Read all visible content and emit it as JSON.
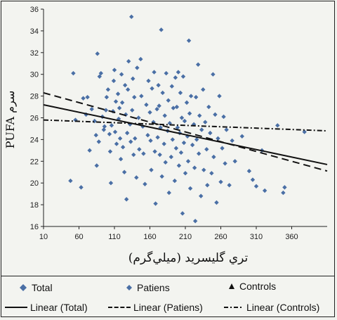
{
  "chart_data": {
    "type": "scatter",
    "title": "",
    "xlabel": "تري گليسريد (ميلي‌گرم)",
    "ylabel": "PUFA سرم",
    "xlim": [
      10,
      410
    ],
    "ylim": [
      16,
      36
    ],
    "x_ticks": [
      10,
      60,
      110,
      160,
      210,
      260,
      310,
      360
    ],
    "y_ticks": [
      16,
      18,
      20,
      22,
      24,
      26,
      28,
      30,
      32,
      34,
      36
    ],
    "grid": false,
    "legend_position": "bottom",
    "series": [
      {
        "name": "Total",
        "marker": "diamond",
        "color": "#4a6fa5",
        "points": [
          [
            48,
            20.2
          ],
          [
            52,
            30.1
          ],
          [
            55,
            25.8
          ],
          [
            63,
            19.6
          ],
          [
            66,
            27.8
          ],
          [
            70,
            26.3
          ],
          [
            72,
            27.9
          ],
          [
            75,
            23.0
          ],
          [
            78,
            26.8
          ],
          [
            82,
            25.7
          ],
          [
            84,
            24.4
          ],
          [
            85,
            21.6
          ],
          [
            86,
            31.9
          ],
          [
            88,
            23.8
          ],
          [
            89,
            29.8
          ],
          [
            91,
            30.1
          ],
          [
            93,
            26.1
          ],
          [
            95,
            24.9
          ],
          [
            96,
            25.2
          ],
          [
            98,
            26.7
          ],
          [
            99,
            27.9
          ],
          [
            101,
            28.6
          ],
          [
            103,
            24.5
          ],
          [
            104,
            22.9
          ],
          [
            105,
            20.0
          ],
          [
            106,
            25.3
          ],
          [
            108,
            26.6
          ],
          [
            109,
            29.4
          ],
          [
            110,
            30.4
          ],
          [
            111,
            24.7
          ],
          [
            112,
            27.5
          ],
          [
            113,
            23.6
          ],
          [
            115,
            28.2
          ],
          [
            116,
            25.9
          ],
          [
            117,
            26.9
          ],
          [
            118,
            24.1
          ],
          [
            119,
            22.2
          ],
          [
            120,
            30.0
          ],
          [
            121,
            27.4
          ],
          [
            122,
            23.3
          ],
          [
            124,
            21.0
          ],
          [
            125,
            29.0
          ],
          [
            126,
            26.3
          ],
          [
            127,
            18.5
          ],
          [
            128,
            24.6
          ],
          [
            129,
            28.6
          ],
          [
            130,
            31.2
          ],
          [
            132,
            25.4
          ],
          [
            133,
            23.8
          ],
          [
            134,
            35.3
          ],
          [
            135,
            26.7
          ],
          [
            136,
            29.6
          ],
          [
            137,
            22.6
          ],
          [
            138,
            27.9
          ],
          [
            139,
            24.1
          ],
          [
            141,
            20.5
          ],
          [
            142,
            30.6
          ],
          [
            144,
            26.0
          ],
          [
            145,
            23.1
          ],
          [
            147,
            31.4
          ],
          [
            148,
            28.0
          ],
          [
            150,
            25.2
          ],
          [
            151,
            22.7
          ],
          [
            153,
            19.9
          ],
          [
            155,
            27.2
          ],
          [
            157,
            24.4
          ],
          [
            158,
            29.4
          ],
          [
            160,
            26.5
          ],
          [
            161,
            23.9
          ],
          [
            162,
            21.2
          ],
          [
            163,
            28.7
          ],
          [
            165,
            25.6
          ],
          [
            166,
            30.2
          ],
          [
            167,
            22.9
          ],
          [
            168,
            18.1
          ],
          [
            170,
            26.8
          ],
          [
            171,
            24.2
          ],
          [
            172,
            29.0
          ],
          [
            173,
            27.1
          ],
          [
            174,
            22.6
          ],
          [
            175,
            25.1
          ],
          [
            176,
            34.1
          ],
          [
            177,
            20.6
          ],
          [
            178,
            28.3
          ],
          [
            180,
            23.6
          ],
          [
            181,
            26.2
          ],
          [
            182,
            21.9
          ],
          [
            183,
            30.1
          ],
          [
            185,
            24.8
          ],
          [
            186,
            27.6
          ],
          [
            187,
            19.1
          ],
          [
            188,
            25.5
          ],
          [
            190,
            22.4
          ],
          [
            191,
            28.9
          ],
          [
            192,
            24.0
          ],
          [
            193,
            26.9
          ],
          [
            195,
            20.2
          ],
          [
            196,
            29.7
          ],
          [
            197,
            23.2
          ],
          [
            198,
            27.0
          ],
          [
            199,
            25.1
          ],
          [
            200,
            30.2
          ],
          [
            201,
            21.6
          ],
          [
            202,
            24.6
          ],
          [
            203,
            28.3
          ],
          [
            204,
            22.8
          ],
          [
            205,
            26.0
          ],
          [
            206,
            17.2
          ],
          [
            207,
            29.8
          ],
          [
            208,
            23.7
          ],
          [
            209,
            25.7
          ],
          [
            210,
            20.9
          ],
          [
            212,
            27.4
          ],
          [
            213,
            24.3
          ],
          [
            214,
            22.0
          ],
          [
            215,
            33.1
          ],
          [
            216,
            26.4
          ],
          [
            217,
            19.5
          ],
          [
            218,
            28.0
          ],
          [
            220,
            23.5
          ],
          [
            222,
            25.4
          ],
          [
            223,
            21.4
          ],
          [
            224,
            16.5
          ],
          [
            225,
            27.9
          ],
          [
            226,
            24.0
          ],
          [
            228,
            30.9
          ],
          [
            229,
            22.7
          ],
          [
            230,
            26.2
          ],
          [
            232,
            18.8
          ],
          [
            233,
            24.9
          ],
          [
            235,
            28.6
          ],
          [
            236,
            21.2
          ],
          [
            238,
            25.6
          ],
          [
            240,
            23.1
          ],
          [
            241,
            19.8
          ],
          [
            243,
            27.0
          ],
          [
            245,
            24.6
          ],
          [
            247,
            20.9
          ],
          [
            249,
            30.0
          ],
          [
            250,
            22.4
          ],
          [
            252,
            26.3
          ],
          [
            254,
            18.2
          ],
          [
            256,
            24.1
          ],
          [
            258,
            28.0
          ],
          [
            260,
            20.1
          ],
          [
            262,
            23.2
          ],
          [
            264,
            26.1
          ],
          [
            266,
            21.8
          ],
          [
            268,
            24.9
          ],
          [
            272,
            19.8
          ],
          [
            276,
            23.9
          ],
          [
            280,
            22.0
          ],
          [
            290,
            24.3
          ],
          [
            300,
            21.1
          ],
          [
            305,
            20.3
          ],
          [
            310,
            19.7
          ],
          [
            318,
            23.0
          ],
          [
            322,
            19.3
          ],
          [
            340,
            25.3
          ],
          [
            348,
            19.1
          ],
          [
            350,
            19.6
          ],
          [
            378,
            24.7
          ]
        ]
      },
      {
        "name": "Patiens",
        "marker": "diamond-small",
        "color": "#4a6fa5",
        "points": []
      },
      {
        "name": "Controls",
        "marker": "triangle",
        "color": "#111111",
        "points": []
      }
    ],
    "trendlines": [
      {
        "name": "Linear (Total)",
        "style": "solid",
        "color": "#111111",
        "x": [
          10,
          410
        ],
        "y": [
          27.2,
          21.7
        ]
      },
      {
        "name": "Linear (Patiens)",
        "style": "dash",
        "color": "#111111",
        "x": [
          10,
          410
        ],
        "y": [
          28.3,
          21.1
        ]
      },
      {
        "name": "Linear (Controls)",
        "style": "dashdot",
        "color": "#111111",
        "x": [
          10,
          410
        ],
        "y": [
          25.8,
          24.8
        ]
      }
    ]
  }
}
